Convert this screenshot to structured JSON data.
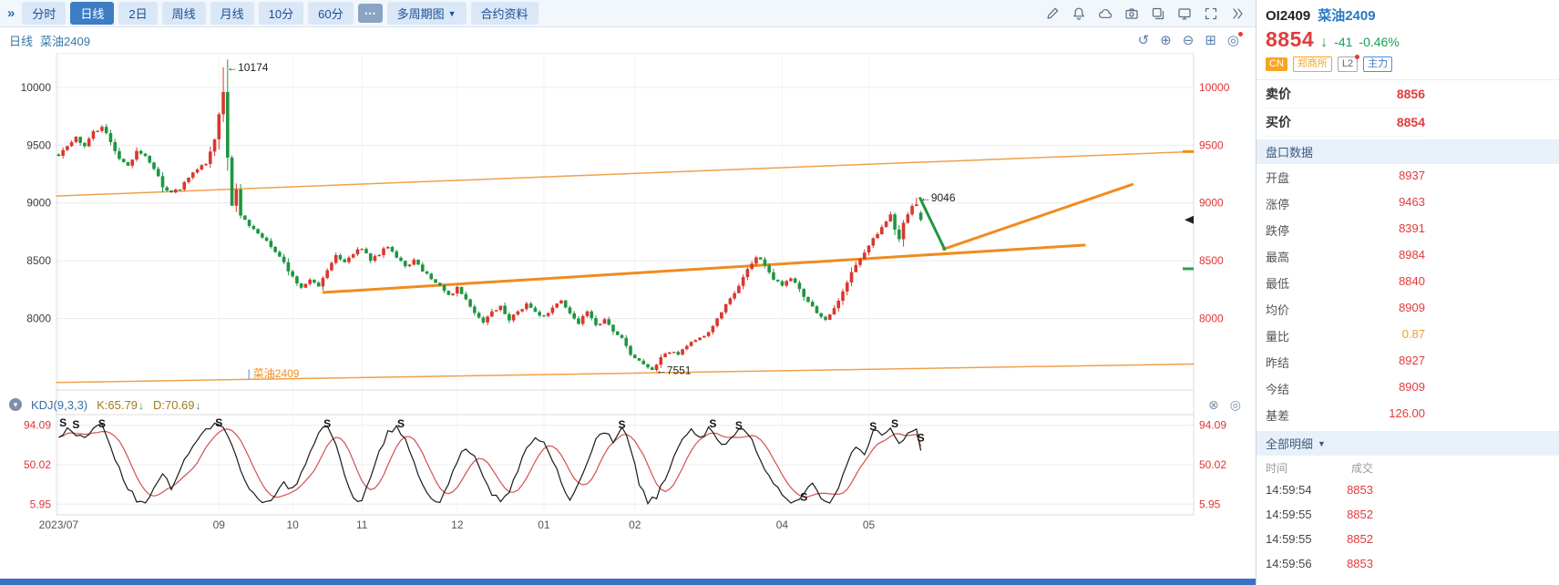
{
  "toolbar": {
    "collapse_icon": "»",
    "tabs": [
      {
        "label": "分时",
        "active": false
      },
      {
        "label": "日线",
        "active": true
      },
      {
        "label": "2日",
        "active": false
      },
      {
        "label": "周线",
        "active": false
      },
      {
        "label": "月线",
        "active": false
      },
      {
        "label": "10分",
        "active": false
      },
      {
        "label": "60分",
        "active": false
      }
    ],
    "more_label": "⋯",
    "multi_period_label": "多周期图",
    "dropdown_caret": "▼",
    "contract_info_label": "合约资料",
    "right_icons": [
      "edit-icon",
      "bell-icon",
      "cloud-icon",
      "camera-icon",
      "copy-icon",
      "monitor-icon",
      "fullscreen-icon",
      "expand-icon"
    ]
  },
  "chart_header": {
    "period": "日线",
    "symbol": "菜油2409",
    "icons": [
      {
        "name": "undo-icon",
        "glyph": "↺",
        "dot": false
      },
      {
        "name": "zoom-in-icon",
        "glyph": "⊕",
        "dot": false
      },
      {
        "name": "zoom-out-icon",
        "glyph": "⊖",
        "dot": false
      },
      {
        "name": "pane-layout-icon",
        "glyph": "⊞",
        "dot": false
      },
      {
        "name": "settings-target-icon",
        "glyph": "◎",
        "dot": true
      }
    ]
  },
  "kdj_header": {
    "collapse_glyph": "▾",
    "title": "KDJ(9,3,3)",
    "k": "K:65.79",
    "d": "D:70.69",
    "arrow_down": "↓",
    "icons": [
      {
        "name": "close-icon",
        "glyph": "⊗"
      },
      {
        "name": "target-icon",
        "glyph": "◎"
      }
    ]
  },
  "quote_panel": {
    "code": "OI2409",
    "name": "菜油2409",
    "price": "8854",
    "arrow": "↓",
    "change": "-41",
    "change_pct": "-0.46%",
    "badges": [
      {
        "label": "CN",
        "style": "orange-solid",
        "dot": false
      },
      {
        "label": "郑商所",
        "style": "orange-outline",
        "dot": false
      },
      {
        "label": "L2",
        "style": "gray-outline",
        "dot": true
      },
      {
        "label": "主力",
        "style": "blue-outline",
        "dot": false
      }
    ],
    "bid_ask": [
      {
        "label": "卖价",
        "value": "8856"
      },
      {
        "label": "买价",
        "value": "8854"
      }
    ],
    "pankou_title": "盘口数据",
    "detail_title": "全部明细",
    "detail_caret": "▼",
    "fields": [
      {
        "label": "开盘",
        "value": "8937",
        "color": "red"
      },
      {
        "label": "涨停",
        "value": "9463",
        "color": "red"
      },
      {
        "label": "跌停",
        "value": "8391",
        "color": "red"
      },
      {
        "label": "最高",
        "value": "8984",
        "color": "red"
      },
      {
        "label": "最低",
        "value": "8840",
        "color": "red"
      },
      {
        "label": "均价",
        "value": "8909",
        "color": "red"
      },
      {
        "label": "量比",
        "value": "0.87",
        "color": "orange"
      },
      {
        "label": "昨结",
        "value": "8927",
        "color": "red"
      },
      {
        "label": "今结",
        "value": "8909",
        "color": "red"
      },
      {
        "label": "基差",
        "value": "126.00",
        "color": "red"
      }
    ],
    "detail_header": {
      "time": "时间",
      "price": "成交"
    },
    "detail_rows": [
      {
        "time": "14:59:54",
        "price": "8853",
        "color": "red"
      },
      {
        "time": "14:59:55",
        "price": "8852",
        "color": "red"
      },
      {
        "time": "14:59:55",
        "price": "8852",
        "color": "red"
      },
      {
        "time": "14:59:56",
        "price": "8853",
        "color": "red"
      }
    ]
  },
  "colors": {
    "up": "#d8382e",
    "down": "#1d9641",
    "trend": "#f08c1e",
    "k_line": "#1a1a1a",
    "d_line": "#d45050",
    "axis_red": "#e03434",
    "accent_blue": "#2f6db5"
  },
  "chart_data": {
    "type": "candlestick",
    "title": "日线 菜油2409",
    "symbol": "菜油2409",
    "period": "日线",
    "last_price": 8854,
    "y_ticks": [
      10000,
      9500,
      9000,
      8500,
      8000
    ],
    "price_range": [
      7380,
      10300
    ],
    "candle_count": 200,
    "x_ticks": [
      {
        "index": 0,
        "label": "2023/07"
      },
      {
        "index": 37,
        "label": "09"
      },
      {
        "index": 54,
        "label": "10"
      },
      {
        "index": 70,
        "label": "11"
      },
      {
        "index": 92,
        "label": "12"
      },
      {
        "index": 112,
        "label": "01"
      },
      {
        "index": 133,
        "label": "02"
      },
      {
        "index": 167,
        "label": "04"
      },
      {
        "index": 187,
        "label": "05"
      }
    ],
    "close_path": [
      [
        0,
        9420
      ],
      [
        2,
        9480
      ],
      [
        4,
        9560
      ],
      [
        6,
        9500
      ],
      [
        8,
        9620
      ],
      [
        10,
        9655
      ],
      [
        12,
        9540
      ],
      [
        14,
        9380
      ],
      [
        16,
        9320
      ],
      [
        18,
        9460
      ],
      [
        20,
        9400
      ],
      [
        22,
        9290
      ],
      [
        24,
        9150
      ],
      [
        26,
        9080
      ],
      [
        28,
        9130
      ],
      [
        30,
        9220
      ],
      [
        32,
        9280
      ],
      [
        34,
        9350
      ],
      [
        36,
        9550
      ],
      [
        37,
        9780
      ],
      [
        38,
        9960
      ],
      [
        39,
        9400
      ],
      [
        40,
        8990
      ],
      [
        41,
        9120
      ],
      [
        42,
        8880
      ],
      [
        44,
        8810
      ],
      [
        46,
        8750
      ],
      [
        48,
        8660
      ],
      [
        50,
        8580
      ],
      [
        52,
        8480
      ],
      [
        54,
        8360
      ],
      [
        56,
        8270
      ],
      [
        58,
        8340
      ],
      [
        60,
        8290
      ],
      [
        62,
        8420
      ],
      [
        64,
        8540
      ],
      [
        66,
        8480
      ],
      [
        68,
        8560
      ],
      [
        70,
        8610
      ],
      [
        72,
        8500
      ],
      [
        74,
        8560
      ],
      [
        76,
        8630
      ],
      [
        78,
        8540
      ],
      [
        80,
        8450
      ],
      [
        82,
        8500
      ],
      [
        84,
        8420
      ],
      [
        86,
        8350
      ],
      [
        88,
        8280
      ],
      [
        90,
        8200
      ],
      [
        92,
        8260
      ],
      [
        94,
        8150
      ],
      [
        96,
        8040
      ],
      [
        98,
        7960
      ],
      [
        100,
        8050
      ],
      [
        102,
        8110
      ],
      [
        104,
        7990
      ],
      [
        106,
        8060
      ],
      [
        108,
        8130
      ],
      [
        110,
        8050
      ],
      [
        112,
        8010
      ],
      [
        114,
        8100
      ],
      [
        116,
        8160
      ],
      [
        118,
        8040
      ],
      [
        120,
        7960
      ],
      [
        122,
        8050
      ],
      [
        124,
        7930
      ],
      [
        126,
        7990
      ],
      [
        128,
        7900
      ],
      [
        130,
        7840
      ],
      [
        132,
        7700
      ],
      [
        134,
        7620
      ],
      [
        136,
        7580
      ],
      [
        137,
        7565
      ],
      [
        139,
        7650
      ],
      [
        141,
        7720
      ],
      [
        143,
        7690
      ],
      [
        145,
        7760
      ],
      [
        147,
        7810
      ],
      [
        149,
        7860
      ],
      [
        151,
        7930
      ],
      [
        153,
        8050
      ],
      [
        155,
        8180
      ],
      [
        157,
        8280
      ],
      [
        159,
        8420
      ],
      [
        161,
        8540
      ],
      [
        163,
        8460
      ],
      [
        165,
        8340
      ],
      [
        167,
        8290
      ],
      [
        169,
        8360
      ],
      [
        171,
        8240
      ],
      [
        173,
        8130
      ],
      [
        175,
        8050
      ],
      [
        177,
        7990
      ],
      [
        179,
        8080
      ],
      [
        181,
        8230
      ],
      [
        183,
        8390
      ],
      [
        185,
        8520
      ],
      [
        187,
        8640
      ],
      [
        189,
        8740
      ],
      [
        191,
        8840
      ],
      [
        192,
        8900
      ],
      [
        193,
        8780
      ],
      [
        194,
        8700
      ],
      [
        195,
        8820
      ],
      [
        196,
        8900
      ],
      [
        197,
        8960
      ],
      [
        198,
        9000
      ],
      [
        199,
        8854
      ]
    ],
    "overrides": {
      "38": {
        "high": 10174
      },
      "137": {
        "low": 7551
      },
      "198": {
        "high": 9046
      },
      "199": {
        "open": 8915,
        "high": 8930,
        "low": 8840,
        "close": 8854
      }
    },
    "annotations": [
      {
        "text": "←10174",
        "index": 38,
        "price": 10174
      },
      {
        "text": "←9046",
        "index": 198,
        "price": 9046
      },
      {
        "text": "←7551",
        "index": 137,
        "price": 7551
      }
    ],
    "line_label": {
      "cursor": "|",
      "text": "菜油2409",
      "x_frac": 0.168,
      "price": 7490
    },
    "trendlines": [
      {
        "points": [
          [
            0,
            9060
          ],
          [
            1,
            9445
          ]
        ],
        "width": 1.5,
        "color": "#f0a04a"
      },
      {
        "points": [
          [
            0,
            7445
          ],
          [
            1,
            7605
          ]
        ],
        "width": 1.5,
        "color": "#f0a04a"
      },
      {
        "points": [
          [
            0.235,
            8225
          ],
          [
            0.904,
            8635
          ]
        ],
        "width": 3,
        "color": "#f08c1e"
      },
      {
        "points": [
          [
            0.78,
            8600
          ],
          [
            0.946,
            9160
          ]
        ],
        "width": 3,
        "color": "#f08c1e"
      },
      {
        "points": [
          [
            0.7595,
            9040
          ],
          [
            0.781,
            8600
          ]
        ],
        "width": 3,
        "color": "#1d9641"
      }
    ],
    "edge_marks": [
      {
        "type": "arrow",
        "price": 8854,
        "color": "#222222"
      },
      {
        "type": "dash",
        "price": 9445,
        "color": "#f08c1e"
      },
      {
        "type": "dash",
        "price": 8430,
        "color": "#2fa14b"
      }
    ],
    "kdj": {
      "title": "KDJ(9,3,3)",
      "k": 65.79,
      "d": 70.69,
      "y_ticks": [
        94.09,
        50.02,
        5.95
      ],
      "range": [
        -6,
        106
      ],
      "k_anchors": [
        [
          0,
          78
        ],
        [
          2,
          93
        ],
        [
          4,
          85
        ],
        [
          6,
          78
        ],
        [
          8,
          90
        ],
        [
          10,
          93
        ],
        [
          12,
          70
        ],
        [
          14,
          45
        ],
        [
          16,
          25
        ],
        [
          18,
          10
        ],
        [
          20,
          7
        ],
        [
          22,
          25
        ],
        [
          24,
          40
        ],
        [
          26,
          25
        ],
        [
          28,
          45
        ],
        [
          30,
          65
        ],
        [
          32,
          78
        ],
        [
          34,
          88
        ],
        [
          36,
          94
        ],
        [
          38,
          90
        ],
        [
          40,
          70
        ],
        [
          42,
          45
        ],
        [
          44,
          25
        ],
        [
          46,
          12
        ],
        [
          48,
          7
        ],
        [
          50,
          18
        ],
        [
          52,
          30
        ],
        [
          54,
          22
        ],
        [
          56,
          40
        ],
        [
          58,
          65
        ],
        [
          60,
          85
        ],
        [
          62,
          93
        ],
        [
          64,
          75
        ],
        [
          66,
          40
        ],
        [
          68,
          14
        ],
        [
          70,
          8
        ],
        [
          72,
          35
        ],
        [
          74,
          65
        ],
        [
          76,
          85
        ],
        [
          78,
          92
        ],
        [
          80,
          80
        ],
        [
          82,
          55
        ],
        [
          84,
          28
        ],
        [
          86,
          10
        ],
        [
          88,
          7
        ],
        [
          90,
          30
        ],
        [
          92,
          55
        ],
        [
          94,
          70
        ],
        [
          96,
          60
        ],
        [
          98,
          35
        ],
        [
          100,
          18
        ],
        [
          102,
          8
        ],
        [
          104,
          20
        ],
        [
          106,
          45
        ],
        [
          108,
          70
        ],
        [
          110,
          82
        ],
        [
          112,
          75
        ],
        [
          114,
          55
        ],
        [
          116,
          30
        ],
        [
          118,
          12
        ],
        [
          120,
          28
        ],
        [
          122,
          55
        ],
        [
          124,
          80
        ],
        [
          126,
          88
        ],
        [
          128,
          75
        ],
        [
          130,
          92
        ],
        [
          132,
          70
        ],
        [
          134,
          30
        ],
        [
          136,
          8
        ],
        [
          138,
          15
        ],
        [
          140,
          35
        ],
        [
          142,
          60
        ],
        [
          144,
          80
        ],
        [
          146,
          88
        ],
        [
          148,
          78
        ],
        [
          150,
          90
        ],
        [
          152,
          80
        ],
        [
          154,
          70
        ],
        [
          156,
          85
        ],
        [
          158,
          92
        ],
        [
          160,
          78
        ],
        [
          162,
          55
        ],
        [
          164,
          35
        ],
        [
          166,
          22
        ],
        [
          168,
          12
        ],
        [
          170,
          8
        ],
        [
          172,
          15
        ],
        [
          174,
          30
        ],
        [
          176,
          12
        ],
        [
          178,
          8
        ],
        [
          180,
          25
        ],
        [
          182,
          50
        ],
        [
          184,
          72
        ],
        [
          186,
          60
        ],
        [
          188,
          90
        ],
        [
          190,
          85
        ],
        [
          192,
          93
        ],
        [
          194,
          75
        ],
        [
          196,
          85
        ],
        [
          198,
          92
        ],
        [
          199,
          65.79
        ]
      ],
      "s_markers": [
        [
          1,
          97
        ],
        [
          4,
          95
        ],
        [
          10,
          96
        ],
        [
          37,
          97
        ],
        [
          62,
          96
        ],
        [
          79,
          96
        ],
        [
          130,
          95
        ],
        [
          151,
          96
        ],
        [
          157,
          94
        ],
        [
          172,
          14
        ],
        [
          188,
          93
        ],
        [
          193,
          96
        ],
        [
          199,
          80
        ]
      ]
    }
  }
}
